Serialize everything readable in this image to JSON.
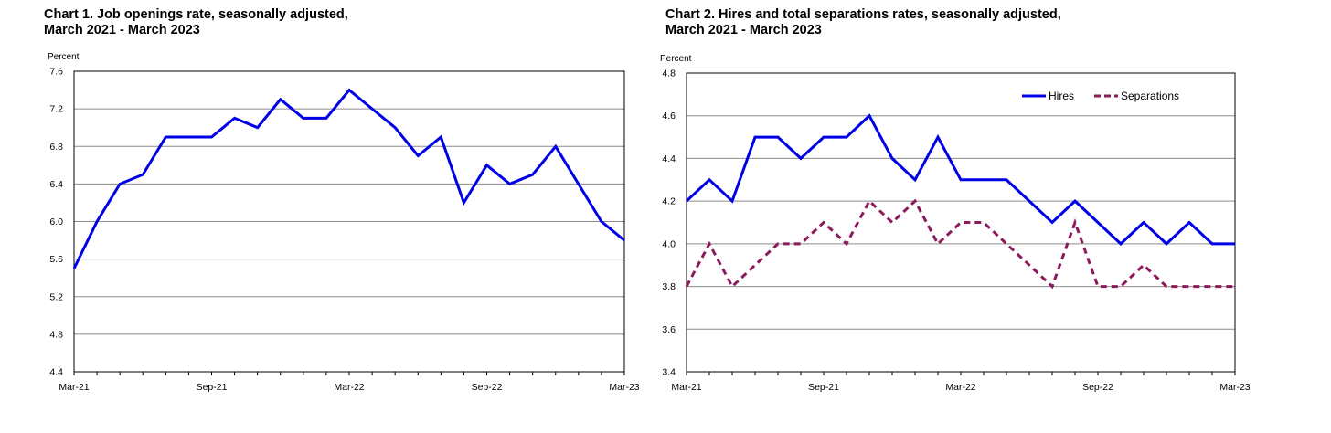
{
  "chart_data": [
    {
      "type": "line",
      "title": "Chart 1. Job openings rate, seasonally adjusted,",
      "subtitle": "March 2021 - March 2023",
      "ylabel": "Percent",
      "ylim": [
        4.4,
        7.6
      ],
      "yticks": [
        "4.4",
        "4.8",
        "5.2",
        "5.6",
        "6.0",
        "6.4",
        "6.8",
        "7.2",
        "7.6"
      ],
      "x_tick_labels": [
        {
          "index": 0,
          "label": "Mar-21"
        },
        {
          "index": 6,
          "label": "Sep-21"
        },
        {
          "index": 12,
          "label": "Mar-22"
        },
        {
          "index": 18,
          "label": "Sep-22"
        },
        {
          "index": 24,
          "label": "Mar-23"
        }
      ],
      "x": [
        "Mar-21",
        "Apr-21",
        "May-21",
        "Jun-21",
        "Jul-21",
        "Aug-21",
        "Sep-21",
        "Oct-21",
        "Nov-21",
        "Dec-21",
        "Jan-22",
        "Feb-22",
        "Mar-22",
        "Apr-22",
        "May-22",
        "Jun-22",
        "Jul-22",
        "Aug-22",
        "Sep-22",
        "Oct-22",
        "Nov-22",
        "Dec-22",
        "Jan-23",
        "Feb-23",
        "Mar-23"
      ],
      "grid": true,
      "legend": null,
      "series": [
        {
          "color": "#0000e6",
          "dash": "solid",
          "values": [
            5.5,
            6.0,
            6.4,
            6.5,
            6.9,
            6.9,
            6.9,
            7.1,
            7.0,
            7.3,
            7.1,
            7.1,
            7.4,
            7.2,
            7.0,
            6.7,
            6.9,
            6.2,
            6.6,
            6.4,
            6.5,
            6.8,
            6.4,
            6.0,
            5.8
          ]
        }
      ]
    },
    {
      "type": "line",
      "title": "Chart 2. Hires and total separations rates, seasonally adjusted,",
      "subtitle": "March 2021 - March 2023",
      "ylabel": "Percent",
      "ylim": [
        3.4,
        4.8
      ],
      "yticks": [
        "3.4",
        "3.6",
        "3.8",
        "4.0",
        "4.2",
        "4.4",
        "4.6",
        "4.8"
      ],
      "x_tick_labels": [
        {
          "index": 0,
          "label": "Mar-21"
        },
        {
          "index": 6,
          "label": "Sep-21"
        },
        {
          "index": 12,
          "label": "Mar-22"
        },
        {
          "index": 18,
          "label": "Sep-22"
        },
        {
          "index": 24,
          "label": "Mar-23"
        }
      ],
      "x": [
        "Mar-21",
        "Apr-21",
        "May-21",
        "Jun-21",
        "Jul-21",
        "Aug-21",
        "Sep-21",
        "Oct-21",
        "Nov-21",
        "Dec-21",
        "Jan-22",
        "Feb-22",
        "Mar-22",
        "Apr-22",
        "May-22",
        "Jun-22",
        "Jul-22",
        "Aug-22",
        "Sep-22",
        "Oct-22",
        "Nov-22",
        "Dec-22",
        "Jan-23",
        "Feb-23",
        "Mar-23"
      ],
      "grid": true,
      "legend": "top-right",
      "series": [
        {
          "name": "Hires",
          "color": "#0000e6",
          "dash": "solid",
          "values": [
            4.2,
            4.3,
            4.2,
            4.5,
            4.5,
            4.4,
            4.5,
            4.5,
            4.6,
            4.4,
            4.3,
            4.5,
            4.3,
            4.3,
            4.3,
            4.2,
            4.1,
            4.2,
            4.1,
            4.0,
            4.1,
            4.0,
            4.1,
            4.0,
            4.0
          ]
        },
        {
          "name": "Separations",
          "color": "#8b1a5a",
          "dash": "dashed",
          "values": [
            3.8,
            4.0,
            3.8,
            3.9,
            4.0,
            4.0,
            4.1,
            4.0,
            4.2,
            4.1,
            4.2,
            4.0,
            4.1,
            4.1,
            4.0,
            3.9,
            3.8,
            4.1,
            3.8,
            3.8,
            3.9,
            3.8,
            3.8,
            3.8,
            3.8
          ]
        }
      ]
    }
  ]
}
